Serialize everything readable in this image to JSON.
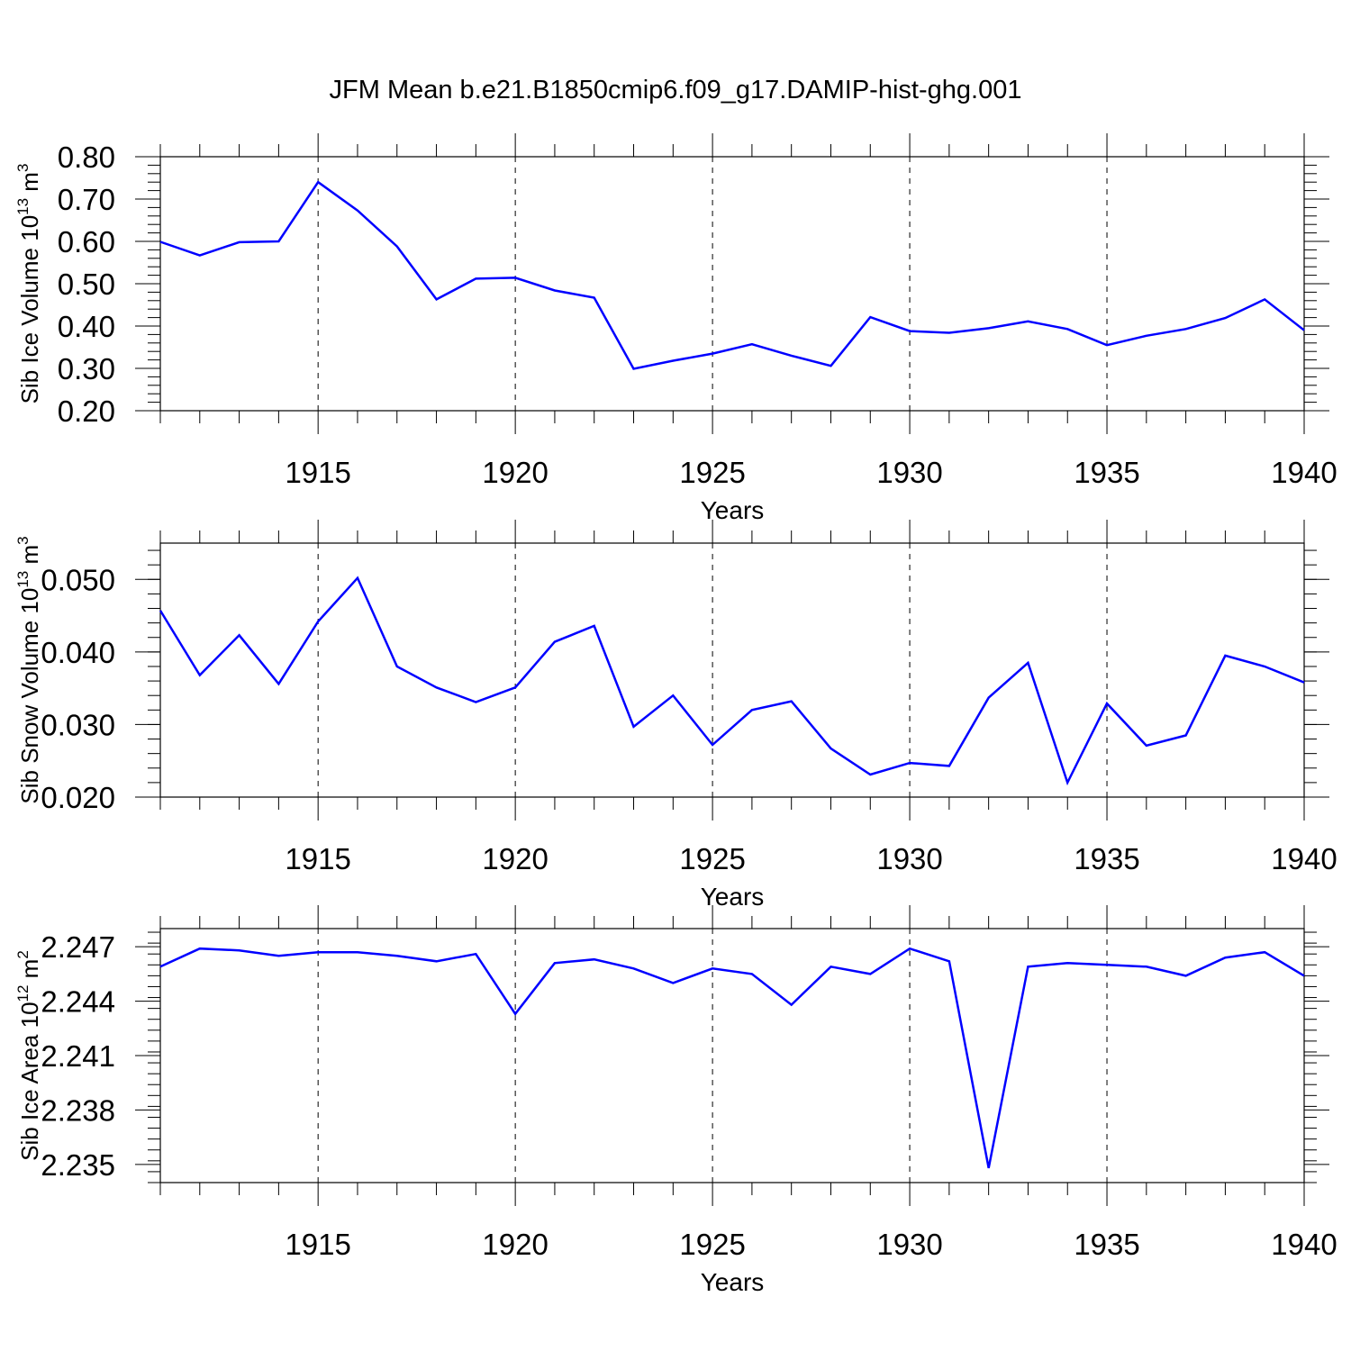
{
  "title": "JFM Mean b.e21.B1850cmip6.f09_g17.DAMIP-hist-ghg.001",
  "line_color": "#0000ff",
  "chart_data": [
    {
      "type": "line",
      "ylabel": "Sib Ice Volume 10",
      "ylabel_exp1": "13",
      "ylabel_unit": " m",
      "ylabel_exp2": "3",
      "xlabel": "Years",
      "xlim": [
        1911,
        1940
      ],
      "ylim": [
        0.2,
        0.8
      ],
      "yticks": [
        0.2,
        0.3,
        0.4,
        0.5,
        0.6,
        0.7,
        0.8
      ],
      "yticklabels": [
        "0.20",
        "0.30",
        "0.40",
        "0.50",
        "0.60",
        "0.70",
        "0.80"
      ],
      "yminor": 0.02,
      "xticks": [
        1915,
        1920,
        1925,
        1930,
        1935,
        1940
      ],
      "xticklabels": [
        "1915",
        "1920",
        "1925",
        "1930",
        "1935",
        "1940"
      ],
      "grid": "vertical dashed at major x ticks",
      "x": [
        1911,
        1912,
        1913,
        1914,
        1915,
        1916,
        1917,
        1918,
        1919,
        1920,
        1921,
        1922,
        1923,
        1924,
        1925,
        1926,
        1927,
        1928,
        1929,
        1930,
        1931,
        1932,
        1933,
        1934,
        1935,
        1936,
        1937,
        1938,
        1939,
        1940
      ],
      "series": [
        {
          "values": [
            0.599,
            0.567,
            0.598,
            0.6,
            0.74,
            0.673,
            0.588,
            0.463,
            0.512,
            0.514,
            0.484,
            0.467,
            0.299,
            0.318,
            0.335,
            0.357,
            0.33,
            0.306,
            0.421,
            0.388,
            0.384,
            0.395,
            0.411,
            0.393,
            0.355,
            0.377,
            0.393,
            0.419,
            0.463,
            0.39
          ]
        }
      ]
    },
    {
      "type": "line",
      "ylabel": "Sib Snow Volume 10",
      "ylabel_exp1": "13",
      "ylabel_unit": " m",
      "ylabel_exp2": "3",
      "xlabel": "Years",
      "xlim": [
        1911,
        1940
      ],
      "ylim": [
        0.02,
        0.055
      ],
      "yticks": [
        0.02,
        0.03,
        0.04,
        0.05
      ],
      "yticklabels": [
        "0.020",
        "0.030",
        "0.040",
        "0.050"
      ],
      "yminor": 0.002,
      "xticks": [
        1915,
        1920,
        1925,
        1930,
        1935,
        1940
      ],
      "xticklabels": [
        "1915",
        "1920",
        "1925",
        "1930",
        "1935",
        "1940"
      ],
      "grid": "vertical dashed at major x ticks",
      "x": [
        1911,
        1912,
        1913,
        1914,
        1915,
        1916,
        1917,
        1918,
        1919,
        1920,
        1921,
        1922,
        1923,
        1924,
        1925,
        1926,
        1927,
        1928,
        1929,
        1930,
        1931,
        1932,
        1933,
        1934,
        1935,
        1936,
        1937,
        1938,
        1939,
        1940
      ],
      "series": [
        {
          "values": [
            0.0457,
            0.0368,
            0.0423,
            0.0356,
            0.0442,
            0.0502,
            0.038,
            0.0351,
            0.0331,
            0.0351,
            0.0414,
            0.0436,
            0.0297,
            0.034,
            0.0272,
            0.032,
            0.0332,
            0.0267,
            0.0231,
            0.0247,
            0.0243,
            0.0337,
            0.0385,
            0.022,
            0.0329,
            0.0271,
            0.0285,
            0.0395,
            0.038,
            0.0358
          ]
        }
      ]
    },
    {
      "type": "line",
      "ylabel": "Sib Ice Area 10",
      "ylabel_exp1": "12",
      "ylabel_unit": " m",
      "ylabel_exp2": "2",
      "xlabel": "Years",
      "xlim": [
        1911,
        1940
      ],
      "ylim": [
        2.234,
        2.248
      ],
      "yticks": [
        2.235,
        2.238,
        2.241,
        2.244,
        2.247
      ],
      "yticklabels": [
        "2.235",
        "2.238",
        "2.241",
        "2.244",
        "2.247"
      ],
      "yminor": 0.0006,
      "xticks": [
        1915,
        1920,
        1925,
        1930,
        1935,
        1940
      ],
      "xticklabels": [
        "1915",
        "1920",
        "1925",
        "1930",
        "1935",
        "1940"
      ],
      "grid": "vertical dashed at major x ticks",
      "x": [
        1911,
        1912,
        1913,
        1914,
        1915,
        1916,
        1917,
        1918,
        1919,
        1920,
        1921,
        1922,
        1923,
        1924,
        1925,
        1926,
        1927,
        1928,
        1929,
        1930,
        1931,
        1932,
        1933,
        1934,
        1935,
        1936,
        1937,
        1938,
        1939,
        1940
      ],
      "series": [
        {
          "values": [
            2.2459,
            2.2469,
            2.2468,
            2.2465,
            2.2467,
            2.2467,
            2.2465,
            2.2462,
            2.2466,
            2.2433,
            2.2461,
            2.2463,
            2.2458,
            2.245,
            2.2458,
            2.2455,
            2.2438,
            2.2459,
            2.2455,
            2.2469,
            2.2462,
            2.2348,
            2.2459,
            2.2461,
            2.246,
            2.2459,
            2.2454,
            2.2464,
            2.2467,
            2.2454
          ]
        }
      ]
    }
  ]
}
